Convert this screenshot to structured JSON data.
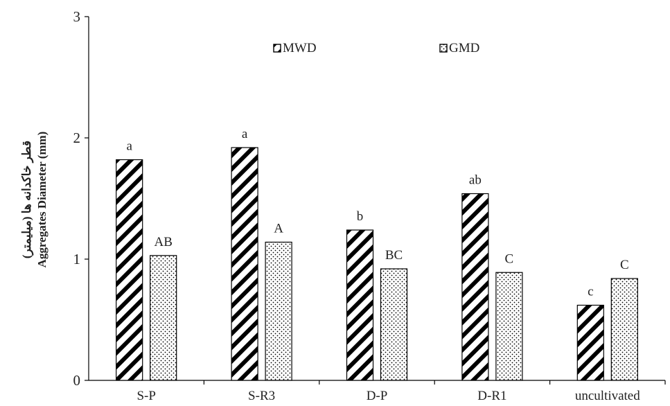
{
  "chart_data": {
    "type": "bar",
    "ylabel": "Aggregates Diameter (mm)",
    "ylabel_fa": "قطر خاکدانه ها (میلیمتر)",
    "ylim": [
      0,
      3
    ],
    "yticks": [
      0,
      1,
      2,
      3
    ],
    "grid": false,
    "legend_position": "top-center",
    "categories": [
      "S-P",
      "S-R3",
      "D-P",
      "D-R1",
      "uncultivated"
    ],
    "series": [
      {
        "name": "MWD",
        "pattern": "diagonal-stripes",
        "values": [
          1.82,
          1.92,
          1.24,
          1.54,
          0.62
        ],
        "labels": [
          "a",
          "a",
          "b",
          "ab",
          "c"
        ]
      },
      {
        "name": "GMD",
        "pattern": "dots",
        "values": [
          1.03,
          1.14,
          0.92,
          0.89,
          0.84
        ],
        "labels": [
          "AB",
          "A",
          "BC",
          "C",
          "C"
        ]
      }
    ],
    "colors": {
      "stroke": "#000000",
      "fill": "#ffffff",
      "axis": "#000000"
    }
  }
}
